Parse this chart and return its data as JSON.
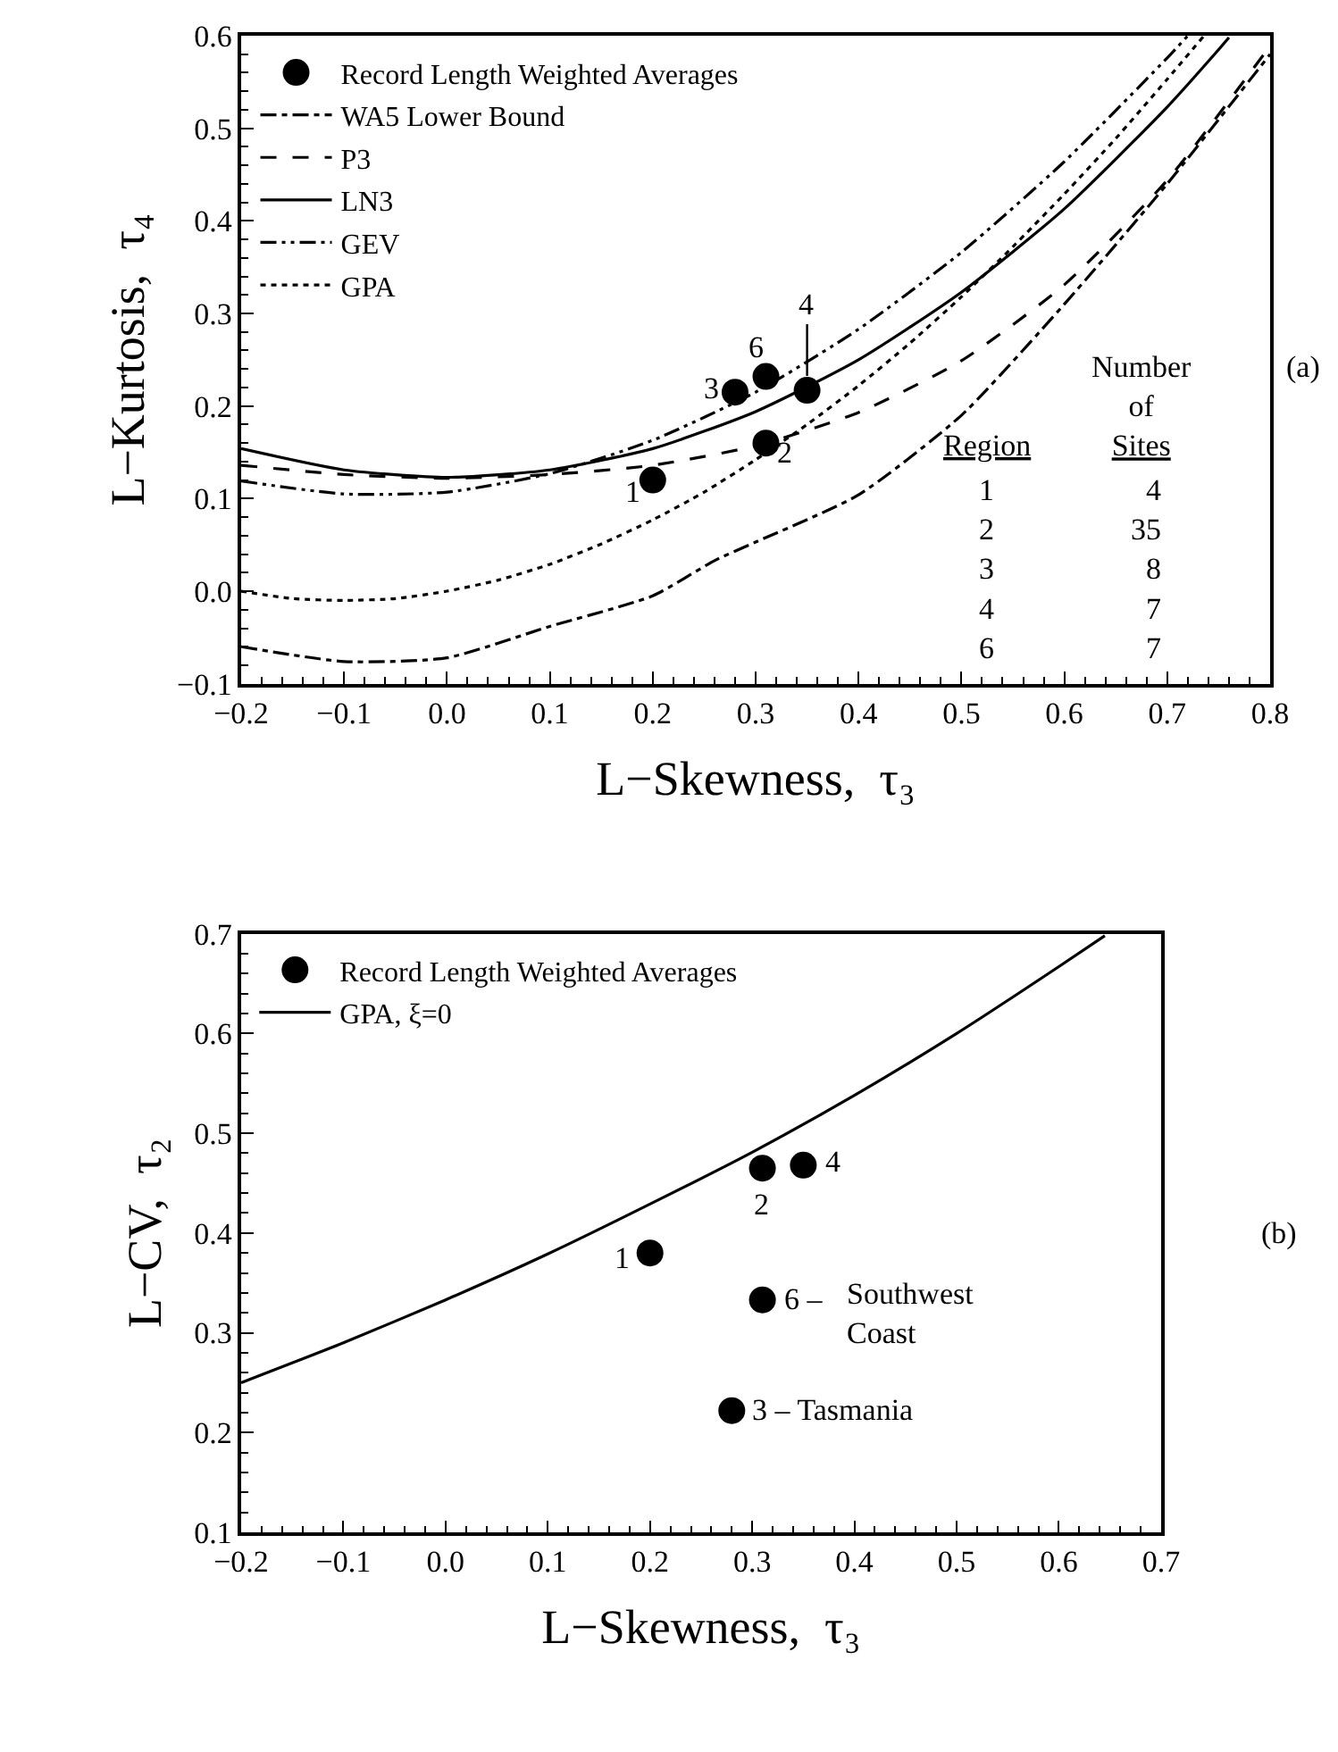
{
  "chart_data": [
    {
      "type": "scatter",
      "xlabel": "L−Skewness,  τ₃",
      "ylabel": "L−Kurtosis,  τ₄",
      "xlim": [
        -0.2,
        0.8
      ],
      "ylim": [
        -0.1,
        0.6
      ],
      "xticks": [
        {
          "value": -0.2,
          "label": "−0.2"
        },
        {
          "value": -0.1,
          "label": "−0.1"
        },
        {
          "value": 0,
          "label": "0.0"
        },
        {
          "value": 0.1,
          "label": "0.1"
        },
        {
          "value": 0.2,
          "label": "0.2"
        },
        {
          "value": 0.3,
          "label": "0.3"
        },
        {
          "value": 0.4,
          "label": "0.4"
        },
        {
          "value": 0.5,
          "label": "0.5"
        },
        {
          "value": 0.6,
          "label": "0.6"
        },
        {
          "value": 0.7,
          "label": "0.7"
        },
        {
          "value": 0.8,
          "label": "0.8"
        }
      ],
      "yticks": [
        {
          "value": -0.1,
          "label": "−0.1"
        },
        {
          "value": 0,
          "label": "0.0"
        },
        {
          "value": 0.1,
          "label": "0.1"
        },
        {
          "value": 0.2,
          "label": "0.2"
        },
        {
          "value": 0.3,
          "label": "0.3"
        },
        {
          "value": 0.4,
          "label": "0.4"
        },
        {
          "value": 0.5,
          "label": "0.5"
        },
        {
          "value": 0.6,
          "label": "0.6"
        }
      ],
      "grid": false,
      "legend": "top left",
      "series": [
        {
          "name": "Record Length Weighted Averages",
          "marker": "circle",
          "color": "#000000",
          "x": [
            0.2,
            0.31,
            0.28,
            0.35,
            0.31
          ],
          "values": [
            0.12,
            0.16,
            0.215,
            0.217,
            0.232
          ]
        },
        {
          "name": "WA5 Lower Bound",
          "type": "line",
          "marker": "none",
          "line_style": "dashdot",
          "color": "#000000",
          "x": [
            -0.2,
            -0.1,
            0,
            0.1,
            0.2,
            0.26,
            0.3,
            0.4,
            0.5,
            0.6,
            0.7,
            0.8
          ],
          "values": [
            -0.06,
            -0.076,
            -0.072,
            -0.038,
            -0.005,
            0.033,
            0.053,
            0.104,
            0.19,
            0.31,
            0.44,
            0.58
          ]
        },
        {
          "name": "P3",
          "type": "line",
          "marker": "none",
          "line_style": "dashed",
          "color": "#000000",
          "x": [
            -0.2,
            -0.1,
            0,
            0.1,
            0.2,
            0.3,
            0.4,
            0.5,
            0.6,
            0.7,
            0.8
          ],
          "values": [
            0.136,
            0.126,
            0.122,
            0.126,
            0.136,
            0.157,
            0.193,
            0.249,
            0.331,
            0.444,
            0.589
          ]
        },
        {
          "name": "LN3",
          "type": "line",
          "marker": "none",
          "line_style": "solid",
          "color": "#000000",
          "x": [
            -0.2,
            -0.1,
            0,
            0.1,
            0.2,
            0.3,
            0.4,
            0.5,
            0.6,
            0.7,
            0.75,
            0.76
          ],
          "values": [
            0.154,
            0.131,
            0.123,
            0.131,
            0.154,
            0.194,
            0.25,
            0.323,
            0.413,
            0.523,
            0.585,
            0.598
          ]
        },
        {
          "name": "GEV",
          "type": "line",
          "marker": "none",
          "line_style": "dashdotdot",
          "color": "#000000",
          "x": [
            -0.2,
            -0.1,
            0,
            0.1,
            0.2,
            0.3,
            0.4,
            0.5,
            0.6,
            0.7,
            0.72
          ],
          "values": [
            0.119,
            0.105,
            0.107,
            0.127,
            0.163,
            0.215,
            0.283,
            0.366,
            0.464,
            0.576,
            0.6
          ]
        },
        {
          "name": "GPA",
          "type": "line",
          "marker": "none",
          "line_style": "dotted",
          "color": "#000000",
          "x": [
            -0.2,
            -0.15,
            -0.1,
            -0.05,
            0,
            0.05,
            0.1,
            0.15,
            0.2,
            0.25,
            0.3,
            0.35,
            0.4,
            0.45,
            0.5,
            0.55,
            0.6,
            0.65,
            0.7,
            0.735
          ],
          "values": [
            0,
            -0.008,
            -0.01,
            -0.008,
            0,
            0.012,
            0.029,
            0.051,
            0.077,
            0.107,
            0.142,
            0.18,
            0.222,
            0.268,
            0.318,
            0.372,
            0.429,
            0.489,
            0.553,
            0.599
          ]
        }
      ],
      "annotations": [
        {
          "text": "1",
          "x": 0.2,
          "y": 0.12
        },
        {
          "text": "2",
          "x": 0.31,
          "y": 0.16
        },
        {
          "text": "3",
          "x": 0.28,
          "y": 0.215
        },
        {
          "text": "6",
          "x": 0.31,
          "y": 0.232
        },
        {
          "text": "4",
          "x": 0.35,
          "y": 0.217
        },
        "Region",
        "Number\nof\nSites",
        "1\n2\n3\n4\n6",
        "4\n35\n8\n7\n7",
        "(a)"
      ]
    },
    {
      "type": "scatter",
      "xlabel": "L−Skewness,  τ₃",
      "ylabel": "L−CV,  τ₂",
      "xlim": [
        -0.2,
        0.7
      ],
      "ylim": [
        0.1,
        0.7
      ],
      "xticks": [
        {
          "value": -0.2,
          "label": "−0.2"
        },
        {
          "value": -0.1,
          "label": "−0.1"
        },
        {
          "value": 0,
          "label": "0.0"
        },
        {
          "value": 0.1,
          "label": "0.1"
        },
        {
          "value": 0.2,
          "label": "0.2"
        },
        {
          "value": 0.3,
          "label": "0.3"
        },
        {
          "value": 0.4,
          "label": "0.4"
        },
        {
          "value": 0.5,
          "label": "0.5"
        },
        {
          "value": 0.6,
          "label": "0.6"
        },
        {
          "value": 0.7,
          "label": "0.7"
        }
      ],
      "yticks": [
        {
          "value": 0.1,
          "label": "0.1"
        },
        {
          "value": 0.2,
          "label": "0.2"
        },
        {
          "value": 0.3,
          "label": "0.3"
        },
        {
          "value": 0.4,
          "label": "0.4"
        },
        {
          "value": 0.5,
          "label": "0.5"
        },
        {
          "value": 0.6,
          "label": "0.6"
        },
        {
          "value": 0.7,
          "label": "0.7"
        }
      ],
      "grid": false,
      "legend": "top left",
      "series": [
        {
          "name": "Record Length Weighted Averages",
          "marker": "circle",
          "color": "#000000",
          "x": [
            0.2,
            0.31,
            0.35,
            0.31,
            0.28
          ],
          "values": [
            0.38,
            0.465,
            0.468,
            0.333,
            0.222
          ]
        },
        {
          "name": "GPA, ξ=0",
          "type": "line",
          "marker": "none",
          "line_style": "solid",
          "color": "#000000",
          "x": [
            -0.2,
            -0.1,
            0,
            0.1,
            0.2,
            0.3,
            0.4,
            0.5,
            0.6,
            0.645
          ],
          "values": [
            0.25,
            0.29,
            0.333,
            0.379,
            0.429,
            0.481,
            0.538,
            0.6,
            0.667,
            0.698
          ]
        }
      ],
      "annotations": [
        {
          "text": "1",
          "x": 0.2,
          "y": 0.38
        },
        {
          "text": "2",
          "x": 0.31,
          "y": 0.465
        },
        {
          "text": "4",
          "x": 0.35,
          "y": 0.468
        },
        {
          "text": "6 –",
          "x": 0.31,
          "y": 0.333
        },
        {
          "text": "Southwest\nCoast",
          "x": 0.31,
          "y": 0.333
        },
        {
          "text": "3 – Tasmania",
          "x": 0.28,
          "y": 0.222
        },
        "(b)"
      ]
    }
  ]
}
